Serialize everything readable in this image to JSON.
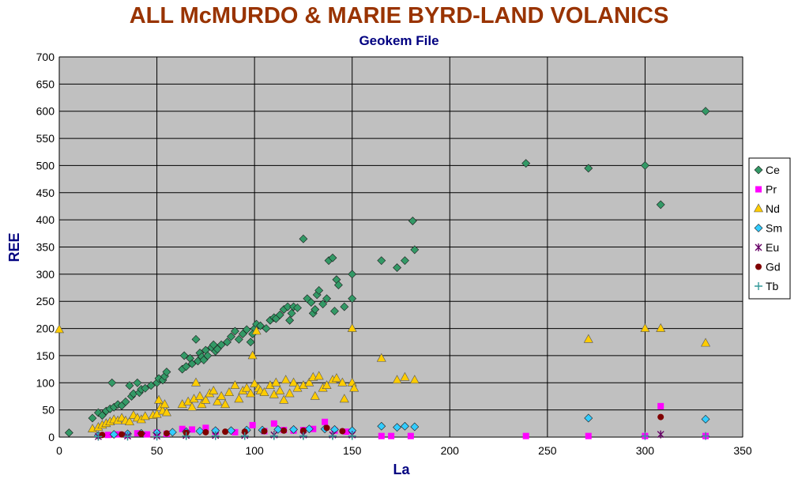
{
  "chart_data": {
    "type": "scatter",
    "title": "ALL McMURDO & MARIE BYRD-LAND VOLANICS",
    "subtitle": "Geokem File",
    "xlabel": "La",
    "ylabel": "REE",
    "xlim": [
      0,
      350
    ],
    "ylim": [
      0,
      700
    ],
    "xticks": [
      0,
      50,
      100,
      150,
      200,
      250,
      300,
      350
    ],
    "yticks": [
      0,
      50,
      100,
      150,
      200,
      250,
      300,
      350,
      400,
      450,
      500,
      550,
      600,
      650,
      700
    ],
    "grid": true,
    "plot_background": "#c0c0c0",
    "legend_position": "right",
    "series": [
      {
        "name": "Ce",
        "color": "#339966",
        "marker": "diamond",
        "points": [
          [
            5,
            8
          ],
          [
            17,
            35
          ],
          [
            20,
            45
          ],
          [
            22,
            40
          ],
          [
            24,
            48
          ],
          [
            26,
            52
          ],
          [
            27,
            100
          ],
          [
            28,
            55
          ],
          [
            30,
            60
          ],
          [
            32,
            58
          ],
          [
            34,
            65
          ],
          [
            36,
            95
          ],
          [
            37,
            75
          ],
          [
            38,
            80
          ],
          [
            40,
            100
          ],
          [
            41,
            82
          ],
          [
            42,
            88
          ],
          [
            44,
            90
          ],
          [
            47,
            95
          ],
          [
            50,
            100
          ],
          [
            51,
            108
          ],
          [
            53,
            105
          ],
          [
            54,
            112
          ],
          [
            55,
            120
          ],
          [
            63,
            125
          ],
          [
            64,
            150
          ],
          [
            65,
            130
          ],
          [
            67,
            145
          ],
          [
            68,
            135
          ],
          [
            70,
            180
          ],
          [
            71,
            140
          ],
          [
            72,
            155
          ],
          [
            73,
            148
          ],
          [
            74,
            142
          ],
          [
            75,
            160
          ],
          [
            76,
            150
          ],
          [
            78,
            165
          ],
          [
            79,
            170
          ],
          [
            80,
            158
          ],
          [
            81,
            162
          ],
          [
            83,
            170
          ],
          [
            86,
            175
          ],
          [
            88,
            185
          ],
          [
            90,
            195
          ],
          [
            92,
            180
          ],
          [
            94,
            190
          ],
          [
            96,
            198
          ],
          [
            98,
            175
          ],
          [
            99,
            190
          ],
          [
            100,
            200
          ],
          [
            101,
            208
          ],
          [
            103,
            205
          ],
          [
            106,
            200
          ],
          [
            108,
            215
          ],
          [
            110,
            220
          ],
          [
            111,
            218
          ],
          [
            113,
            225
          ],
          [
            115,
            235
          ],
          [
            117,
            240
          ],
          [
            118,
            215
          ],
          [
            119,
            228
          ],
          [
            120,
            240
          ],
          [
            122,
            238
          ],
          [
            125,
            365
          ],
          [
            127,
            255
          ],
          [
            129,
            248
          ],
          [
            130,
            228
          ],
          [
            131,
            235
          ],
          [
            132,
            262
          ],
          [
            133,
            270
          ],
          [
            135,
            245
          ],
          [
            137,
            255
          ],
          [
            138,
            325
          ],
          [
            140,
            330
          ],
          [
            141,
            232
          ],
          [
            142,
            290
          ],
          [
            143,
            280
          ],
          [
            146,
            240
          ],
          [
            150,
            300
          ],
          [
            150,
            255
          ],
          [
            165,
            325
          ],
          [
            173,
            312
          ],
          [
            177,
            325
          ],
          [
            181,
            398
          ],
          [
            182,
            345
          ],
          [
            239,
            504
          ],
          [
            271,
            495
          ],
          [
            300,
            500
          ],
          [
            308,
            428
          ],
          [
            331,
            600
          ]
        ]
      },
      {
        "name": "Pr",
        "color": "#ff00ff",
        "marker": "square",
        "points": [
          [
            25,
            4
          ],
          [
            30,
            5
          ],
          [
            35,
            4
          ],
          [
            40,
            7
          ],
          [
            45,
            5
          ],
          [
            50,
            8
          ],
          [
            55,
            6
          ],
          [
            63,
            15
          ],
          [
            68,
            14
          ],
          [
            75,
            17
          ],
          [
            80,
            10
          ],
          [
            90,
            9
          ],
          [
            99,
            22
          ],
          [
            105,
            11
          ],
          [
            110,
            25
          ],
          [
            115,
            13
          ],
          [
            120,
            12
          ],
          [
            125,
            13
          ],
          [
            130,
            15
          ],
          [
            136,
            28
          ],
          [
            141,
            12
          ],
          [
            147,
            10
          ],
          [
            165,
            2
          ],
          [
            170,
            2
          ],
          [
            180,
            2
          ],
          [
            239,
            2
          ],
          [
            271,
            2
          ],
          [
            300,
            2
          ],
          [
            308,
            57
          ],
          [
            331,
            2
          ]
        ]
      },
      {
        "name": "Nd",
        "color": "#ffcc00",
        "marker": "triangle",
        "points": [
          [
            0,
            198
          ],
          [
            17,
            15
          ],
          [
            20,
            18
          ],
          [
            22,
            22
          ],
          [
            24,
            25
          ],
          [
            26,
            28
          ],
          [
            28,
            32
          ],
          [
            30,
            30
          ],
          [
            32,
            35
          ],
          [
            34,
            30
          ],
          [
            36,
            28
          ],
          [
            38,
            40
          ],
          [
            40,
            35
          ],
          [
            42,
            32
          ],
          [
            44,
            38
          ],
          [
            48,
            40
          ],
          [
            50,
            42
          ],
          [
            51,
            68
          ],
          [
            52,
            55
          ],
          [
            53,
            48
          ],
          [
            54,
            60
          ],
          [
            55,
            45
          ],
          [
            63,
            60
          ],
          [
            66,
            65
          ],
          [
            68,
            55
          ],
          [
            69,
            70
          ],
          [
            70,
            100
          ],
          [
            72,
            75
          ],
          [
            73,
            60
          ],
          [
            75,
            68
          ],
          [
            77,
            80
          ],
          [
            79,
            85
          ],
          [
            81,
            65
          ],
          [
            83,
            75
          ],
          [
            85,
            60
          ],
          [
            87,
            82
          ],
          [
            90,
            95
          ],
          [
            92,
            70
          ],
          [
            94,
            85
          ],
          [
            96,
            90
          ],
          [
            98,
            80
          ],
          [
            99,
            150
          ],
          [
            100,
            98
          ],
          [
            101,
            195
          ],
          [
            102,
            90
          ],
          [
            103,
            85
          ],
          [
            105,
            82
          ],
          [
            108,
            95
          ],
          [
            110,
            78
          ],
          [
            111,
            100
          ],
          [
            113,
            85
          ],
          [
            115,
            68
          ],
          [
            116,
            105
          ],
          [
            118,
            80
          ],
          [
            120,
            100
          ],
          [
            122,
            90
          ],
          [
            125,
            95
          ],
          [
            128,
            100
          ],
          [
            130,
            110
          ],
          [
            131,
            75
          ],
          [
            133,
            112
          ],
          [
            135,
            90
          ],
          [
            137,
            95
          ],
          [
            140,
            105
          ],
          [
            142,
            108
          ],
          [
            145,
            100
          ],
          [
            146,
            70
          ],
          [
            150,
            200
          ],
          [
            150,
            100
          ],
          [
            151,
            90
          ],
          [
            165,
            145
          ],
          [
            173,
            105
          ],
          [
            177,
            110
          ],
          [
            182,
            105
          ],
          [
            271,
            180
          ],
          [
            300,
            200
          ],
          [
            308,
            200
          ],
          [
            331,
            173
          ]
        ]
      },
      {
        "name": "Sm",
        "color": "#33ccff",
        "marker": "diamond",
        "points": [
          [
            20,
            3
          ],
          [
            28,
            5
          ],
          [
            35,
            6
          ],
          [
            42,
            7
          ],
          [
            50,
            8
          ],
          [
            58,
            9
          ],
          [
            65,
            10
          ],
          [
            72,
            11
          ],
          [
            80,
            12
          ],
          [
            88,
            12
          ],
          [
            96,
            13
          ],
          [
            104,
            13
          ],
          [
            112,
            14
          ],
          [
            120,
            14
          ],
          [
            128,
            15
          ],
          [
            136,
            15
          ],
          [
            141,
            14
          ],
          [
            150,
            12
          ],
          [
            165,
            20
          ],
          [
            173,
            18
          ],
          [
            177,
            20
          ],
          [
            182,
            19
          ],
          [
            271,
            35
          ],
          [
            331,
            33
          ]
        ]
      },
      {
        "name": "Eu",
        "color": "#660066",
        "marker": "star",
        "points": [
          [
            20,
            1
          ],
          [
            35,
            2
          ],
          [
            50,
            2
          ],
          [
            65,
            3
          ],
          [
            80,
            3
          ],
          [
            95,
            3
          ],
          [
            110,
            4
          ],
          [
            125,
            4
          ],
          [
            140,
            4
          ],
          [
            150,
            4
          ],
          [
            308,
            5
          ]
        ]
      },
      {
        "name": "Gd",
        "color": "#800000",
        "marker": "circle",
        "points": [
          [
            22,
            4
          ],
          [
            32,
            5
          ],
          [
            42,
            6
          ],
          [
            55,
            7
          ],
          [
            65,
            8
          ],
          [
            75,
            9
          ],
          [
            85,
            10
          ],
          [
            95,
            10
          ],
          [
            105,
            11
          ],
          [
            115,
            12
          ],
          [
            125,
            12
          ],
          [
            137,
            17
          ],
          [
            145,
            11
          ],
          [
            308,
            37
          ]
        ]
      },
      {
        "name": "Tb",
        "color": "#339999",
        "marker": "plus",
        "points": [
          [
            20,
            1
          ],
          [
            35,
            1
          ],
          [
            50,
            1
          ],
          [
            65,
            2
          ],
          [
            80,
            2
          ],
          [
            95,
            2
          ],
          [
            110,
            2
          ],
          [
            125,
            2
          ],
          [
            140,
            2
          ],
          [
            150,
            2
          ],
          [
            300,
            2
          ],
          [
            331,
            2
          ]
        ]
      }
    ]
  }
}
